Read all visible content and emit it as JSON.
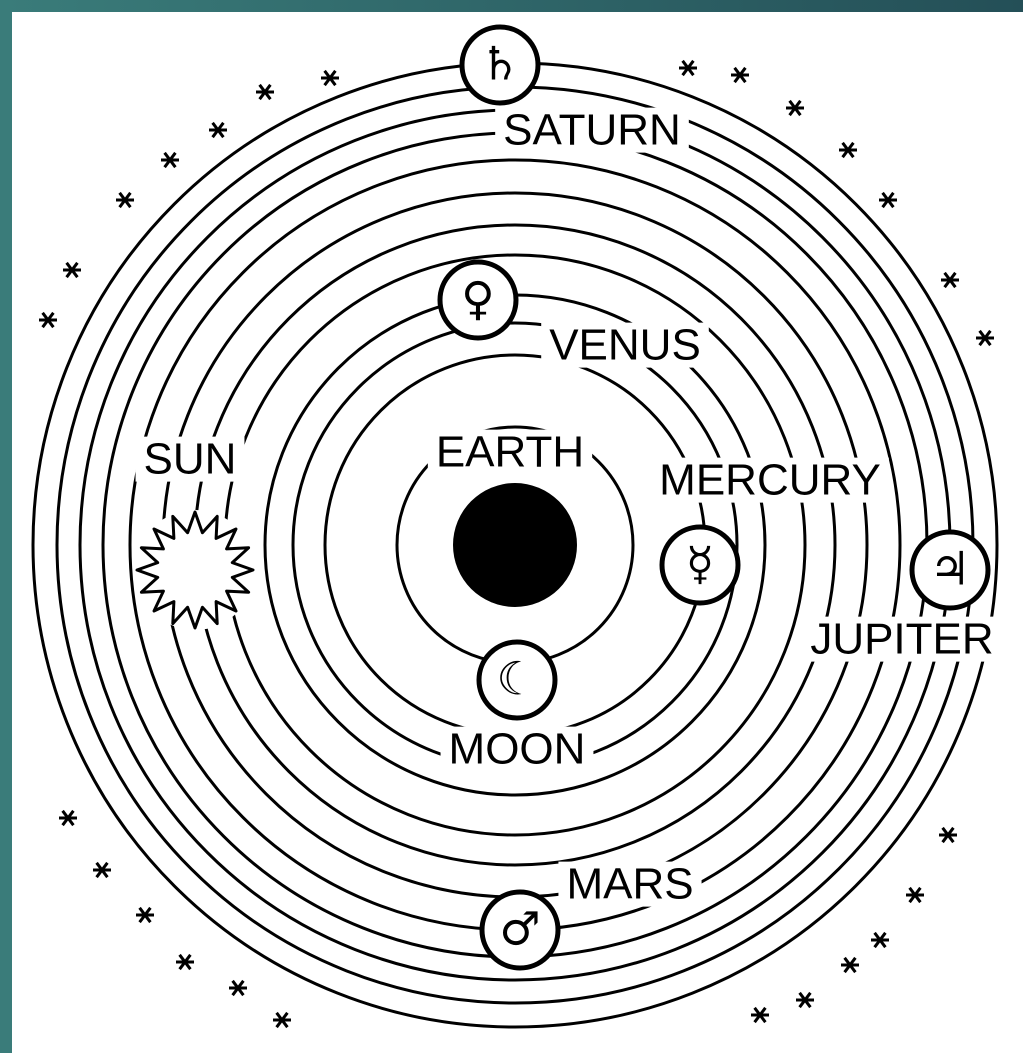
{
  "bodies": [
    {
      "label": "SATURN",
      "symbol": "♄"
    },
    {
      "label": "VENUS",
      "symbol": "♀"
    },
    {
      "label": "SUN"
    },
    {
      "label": "EARTH"
    },
    {
      "label": "MERCURY",
      "symbol": "☿"
    },
    {
      "label": "JUPITER",
      "symbol": "♃"
    },
    {
      "label": "MOON",
      "symbol": "☾"
    },
    {
      "label": "MARS",
      "symbol": "♂"
    }
  ]
}
